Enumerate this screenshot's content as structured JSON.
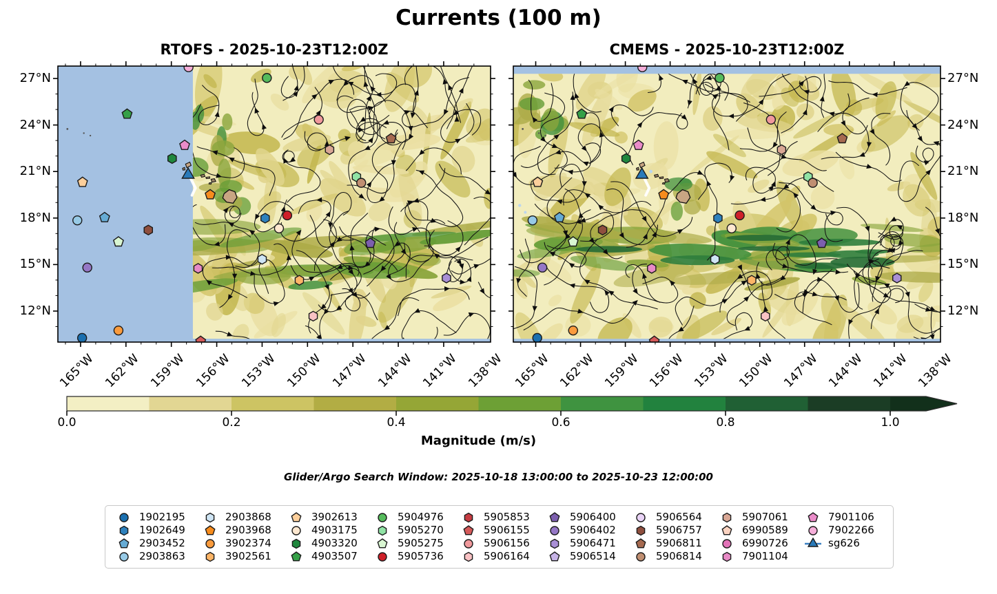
{
  "title": "Currents (100 m)",
  "panels": [
    {
      "id": "rtofs",
      "title": "RTOFS - 2025-10-23T12:00Z"
    },
    {
      "id": "cmems",
      "title": "CMEMS - 2025-10-23T12:00Z"
    }
  ],
  "axes": {
    "lat_ticks": [
      "27°N",
      "24°N",
      "21°N",
      "18°N",
      "15°N",
      "12°N"
    ],
    "lat_values": [
      27,
      24,
      21,
      18,
      15,
      12
    ],
    "lon_ticks": [
      "165°W",
      "162°W",
      "159°W",
      "156°W",
      "153°W",
      "150°W",
      "147°W",
      "144°W",
      "141°W",
      "138°W"
    ],
    "lon_values": [
      165,
      162,
      159,
      156,
      153,
      150,
      147,
      144,
      141,
      138
    ]
  },
  "colorbar": {
    "label": "Magnitude (m/s)",
    "ticks": [
      "0.0",
      "0.2",
      "0.4",
      "0.6",
      "0.8",
      "1.0"
    ],
    "tick_values": [
      0.0,
      0.2,
      0.4,
      0.6,
      0.8,
      1.0
    ],
    "segment_colors": [
      "#f3efc4",
      "#e2d693",
      "#cdc463",
      "#b2ad44",
      "#95a636",
      "#6da035",
      "#3f9340",
      "#22823e",
      "#206034",
      "#1b3d25"
    ],
    "over_color": "#12301b"
  },
  "annotation": "Glider/Argo Search Window: 2025-10-18 13:00:00 to 2025-10-23 12:00:00",
  "map_colors": {
    "no_data_blue": "#a4c1e2",
    "field_base": "#f2edbe",
    "island_fill": "#c8a583",
    "track_white": "#ffffff"
  },
  "legend": {
    "items": [
      {
        "id": "1902195",
        "shape": "circle",
        "color": "#1a6faf"
      },
      {
        "id": "1902649",
        "shape": "hexagon",
        "color": "#2e81bd"
      },
      {
        "id": "2903452",
        "shape": "pentagon",
        "color": "#66abd4"
      },
      {
        "id": "2903863",
        "shape": "circle",
        "color": "#97cae6"
      },
      {
        "id": "2903868",
        "shape": "hexagon",
        "color": "#cfe5f4"
      },
      {
        "id": "2903968",
        "shape": "pentagon",
        "color": "#f78c1d"
      },
      {
        "id": "3902374",
        "shape": "circle",
        "color": "#fa9b3d"
      },
      {
        "id": "3902561",
        "shape": "hexagon",
        "color": "#fcb567"
      },
      {
        "id": "3902613",
        "shape": "pentagon",
        "color": "#fdcf9b"
      },
      {
        "id": "4903175",
        "shape": "circle",
        "color": "#fee8d0"
      },
      {
        "id": "4903320",
        "shape": "hexagon",
        "color": "#20873e"
      },
      {
        "id": "4903507",
        "shape": "pentagon",
        "color": "#35a048"
      },
      {
        "id": "5904976",
        "shape": "circle",
        "color": "#55bb5c"
      },
      {
        "id": "5905270",
        "shape": "hexagon",
        "color": "#90e3a5"
      },
      {
        "id": "5905275",
        "shape": "pentagon",
        "color": "#d9f6d2"
      },
      {
        "id": "5905736",
        "shape": "circle",
        "color": "#ce2029"
      },
      {
        "id": "5905853",
        "shape": "hexagon",
        "color": "#c63c42"
      },
      {
        "id": "5906155",
        "shape": "pentagon",
        "color": "#d55a5a"
      },
      {
        "id": "5906156",
        "shape": "circle",
        "color": "#f0999c"
      },
      {
        "id": "5906164",
        "shape": "hexagon",
        "color": "#f9c2c4"
      },
      {
        "id": "5906400",
        "shape": "pentagon",
        "color": "#7c5fae"
      },
      {
        "id": "5906402",
        "shape": "circle",
        "color": "#9577c6"
      },
      {
        "id": "5906471",
        "shape": "hexagon",
        "color": "#a98fd6"
      },
      {
        "id": "5906514",
        "shape": "pentagon",
        "color": "#c6b3e6"
      },
      {
        "id": "5906564",
        "shape": "circle",
        "color": "#e9d3f6"
      },
      {
        "id": "5906757",
        "shape": "hexagon",
        "color": "#8f4f3e"
      },
      {
        "id": "5906811",
        "shape": "pentagon",
        "color": "#a66a50"
      },
      {
        "id": "5906814",
        "shape": "circle",
        "color": "#c08f72"
      },
      {
        "id": "5907061",
        "shape": "hexagon",
        "color": "#d9a795"
      },
      {
        "id": "6990589",
        "shape": "pentagon",
        "color": "#fbd3c1"
      },
      {
        "id": "6990726",
        "shape": "circle",
        "color": "#e273b8"
      },
      {
        "id": "7901104",
        "shape": "hexagon",
        "color": "#e78ac5"
      },
      {
        "id": "7901106",
        "shape": "pentagon",
        "color": "#ea8cc9"
      },
      {
        "id": "7902266",
        "shape": "circle",
        "color": "#f5aed9"
      },
      {
        "id": "sg626",
        "shape": "triangle",
        "color": "#2a7ab9"
      }
    ]
  },
  "chart_data": {
    "type": "heatmap",
    "variant": "ocean-current streamplot maps (two panels, shared colorbar)",
    "title": "Currents (100 m)",
    "panel_titles": [
      "RTOFS - 2025-10-23T12:00Z",
      "CMEMS - 2025-10-23T12:00Z"
    ],
    "x_tick_labels": [
      "165°W",
      "162°W",
      "159°W",
      "156°W",
      "153°W",
      "150°W",
      "147°W",
      "144°W",
      "141°W",
      "138°W"
    ],
    "y_tick_labels": [
      "27°N",
      "24°N",
      "21°N",
      "18°N",
      "15°N",
      "12°N"
    ],
    "xlim_deg_west": [
      166.5,
      137.9
    ],
    "ylim_deg_north": [
      10.0,
      27.8
    ],
    "colorbar": {
      "label": "Magnitude (m/s)",
      "tick_labels": [
        "0.0",
        "0.2",
        "0.4",
        "0.6",
        "0.8",
        "1.0"
      ],
      "range": [
        0.0,
        1.0
      ],
      "extend": "max"
    },
    "no_data_regions": {
      "rtofs": "western ~31% of panel shown as blue (no model data)",
      "cmems": "thin blue strip along top edge and bottom edge"
    },
    "float_markers": [
      {
        "id": "1902195",
        "x": 0.056,
        "y": 0.985
      },
      {
        "id": "1902649",
        "x": 0.479,
        "y": 0.551
      },
      {
        "id": "2903452",
        "x": 0.108,
        "y": 0.549
      },
      {
        "id": "2903863",
        "x": 0.045,
        "y": 0.559
      },
      {
        "id": "2903868",
        "x": 0.472,
        "y": 0.7
      },
      {
        "id": "2903968",
        "x": 0.352,
        "y": 0.466
      },
      {
        "id": "3902374",
        "x": 0.14,
        "y": 0.958
      },
      {
        "id": "3902561",
        "x": 0.558,
        "y": 0.776
      },
      {
        "id": "3902613",
        "x": 0.057,
        "y": 0.421
      },
      {
        "id": "4903175",
        "x": 0.511,
        "y": 0.588
      },
      {
        "id": "4903320",
        "x": 0.264,
        "y": 0.335
      },
      {
        "id": "4903507",
        "x": 0.16,
        "y": 0.174
      },
      {
        "id": "5904976",
        "x": 0.483,
        "y": 0.043
      },
      {
        "id": "5905270",
        "x": 0.69,
        "y": 0.401
      },
      {
        "id": "5905275",
        "x": 0.14,
        "y": 0.637
      },
      {
        "id": "5905736",
        "x": 0.53,
        "y": 0.541
      },
      {
        "id": "5906155",
        "x": 0.33,
        "y": 0.997
      },
      {
        "id": "5906156",
        "x": 0.603,
        "y": 0.194
      },
      {
        "id": "5906164",
        "x": 0.59,
        "y": 0.906
      },
      {
        "id": "5906400",
        "x": 0.722,
        "y": 0.642
      },
      {
        "id": "5906402",
        "x": 0.068,
        "y": 0.73
      },
      {
        "id": "5906471",
        "x": 0.898,
        "y": 0.768
      },
      {
        "id": "5906757",
        "x": 0.209,
        "y": 0.594
      },
      {
        "id": "5906811",
        "x": 0.77,
        "y": 0.263
      },
      {
        "id": "5906814",
        "x": 0.701,
        "y": 0.423
      },
      {
        "id": "5907061",
        "x": 0.628,
        "y": 0.303
      },
      {
        "id": "7901104",
        "x": 0.324,
        "y": 0.733
      },
      {
        "id": "7901106",
        "x": 0.293,
        "y": 0.287
      },
      {
        "id": "7902266",
        "x": 0.302,
        "y": 0.004
      },
      {
        "id": "sg626",
        "x": 0.301,
        "y": 0.394
      }
    ]
  }
}
